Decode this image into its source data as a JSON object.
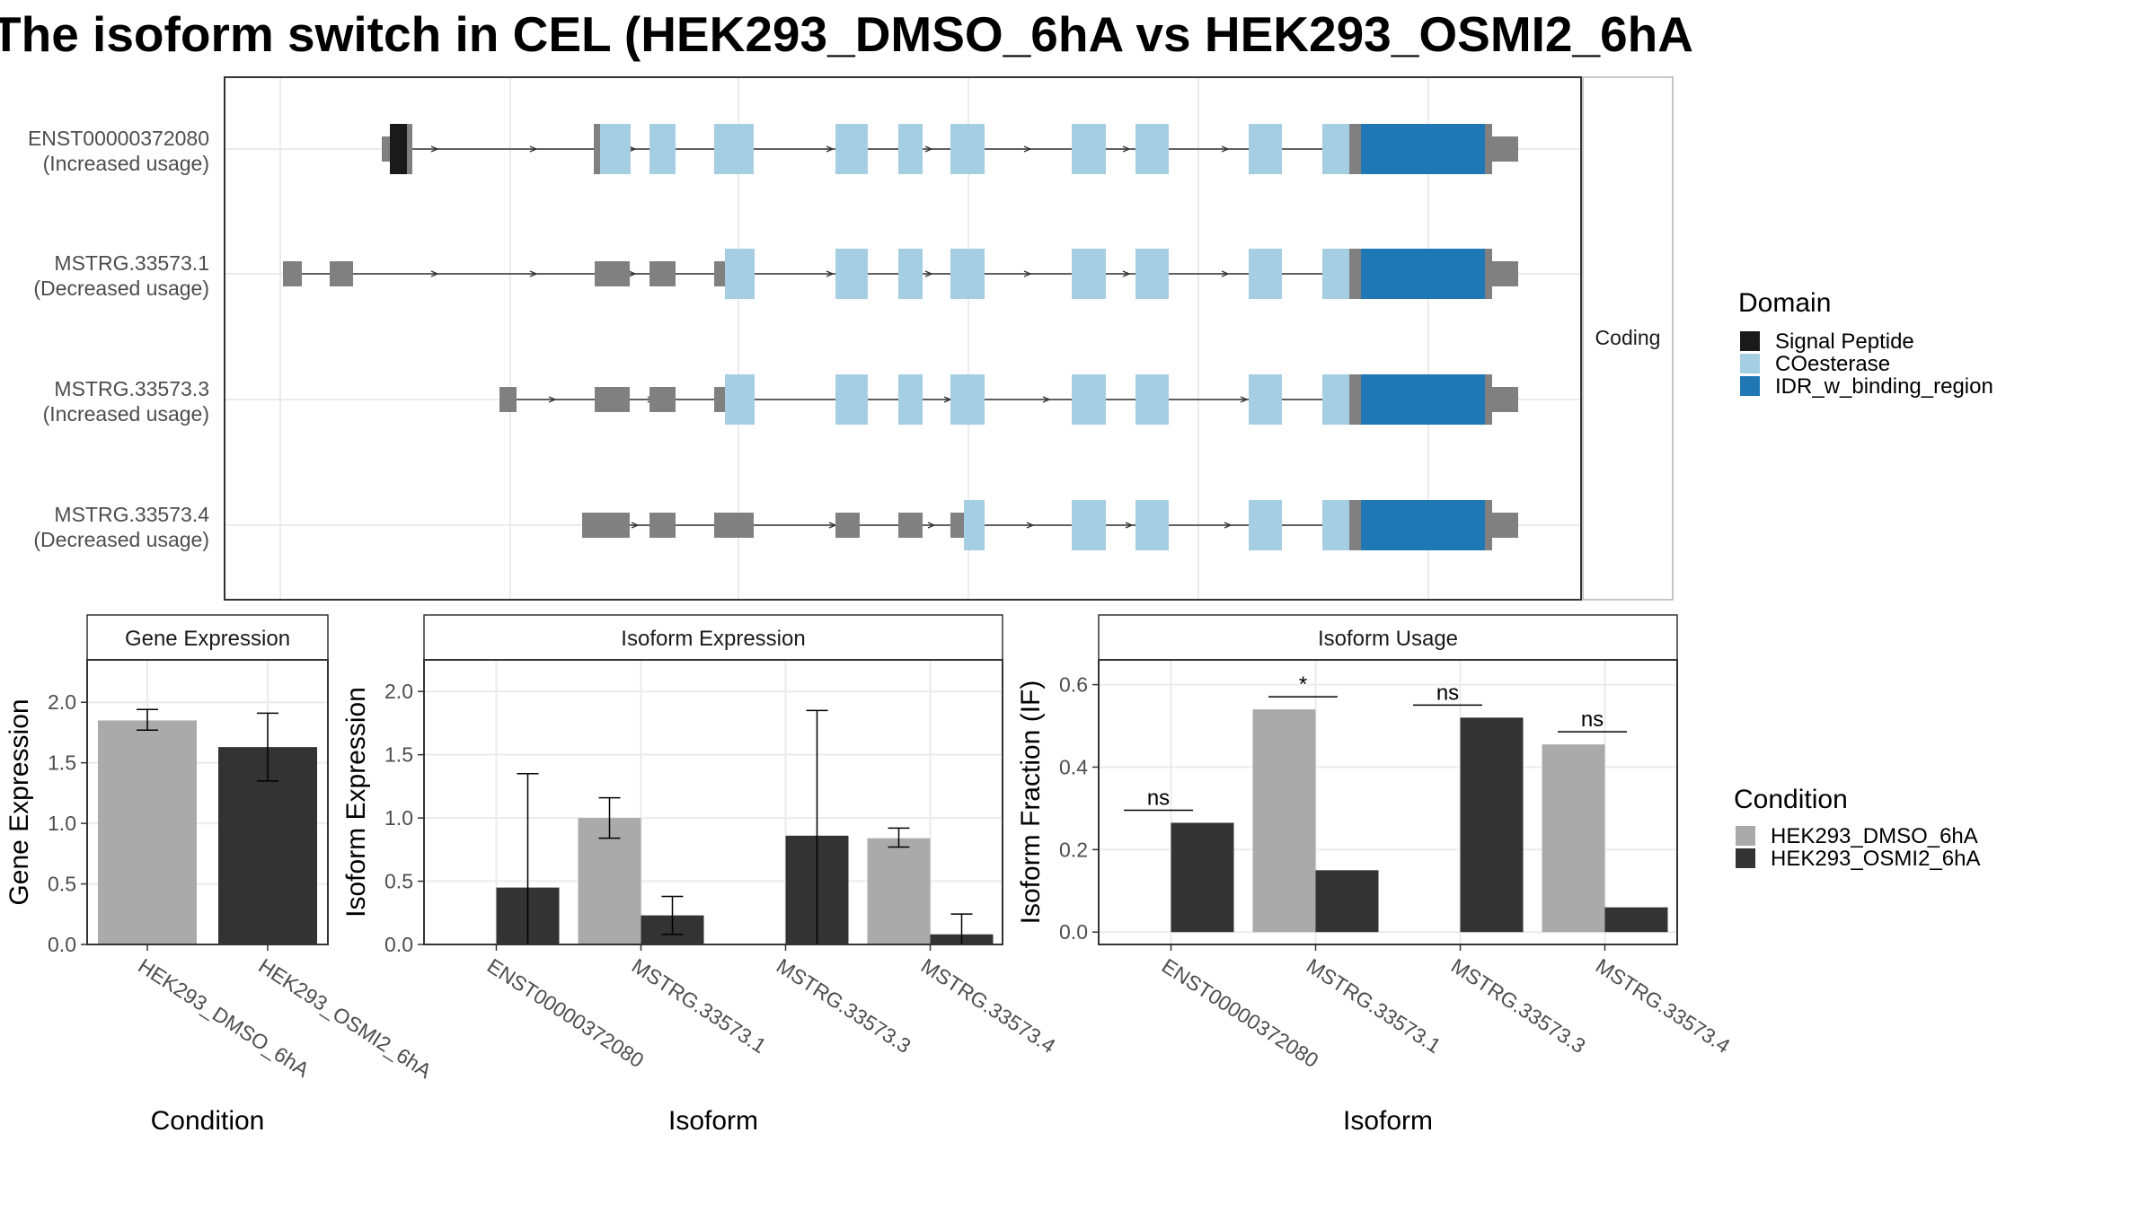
{
  "title": "The isoform switch in CEL (HEK293_DMSO_6hA vs HEK293_OSMI2_6hA",
  "chart_data": [
    {
      "type": "gene-structure",
      "facet_label": "Coding",
      "transcripts": [
        {
          "id": "ENST00000372080",
          "note": "(Increased usage)"
        },
        {
          "id": "MSTRG.33573.1",
          "note": "(Decreased usage)"
        },
        {
          "id": "MSTRG.33573.3",
          "note": "(Increased usage)"
        },
        {
          "id": "MSTRG.33573.4",
          "note": "(Decreased usage)"
        }
      ],
      "legend": {
        "title": "Domain",
        "entries": [
          {
            "label": "Signal Peptide",
            "color": "#1a1a1a"
          },
          {
            "label": "COesterase",
            "color": "#a6cee3"
          },
          {
            "label": "IDR_w_binding_region",
            "color": "#1f78b4"
          }
        ]
      },
      "colors": {
        "noncoding": "#808080"
      }
    },
    {
      "type": "bar",
      "facet_label": "Gene Expression",
      "xlabel": "Condition",
      "ylabel": "Gene Expression",
      "ylim": [
        0,
        2.35
      ],
      "yticks": [
        "0.0",
        "0.5",
        "1.0",
        "1.5",
        "2.0"
      ],
      "categories": [
        "HEK293_DMSO_6hA",
        "HEK293_OSMI2_6hA"
      ],
      "values": [
        1.85,
        1.63
      ],
      "errors": [
        [
          1.77,
          1.94
        ],
        [
          1.35,
          1.91
        ]
      ]
    },
    {
      "type": "bar",
      "facet_label": "Isoform Expression",
      "xlabel": "Isoform",
      "ylabel": "Isoform Expression",
      "ylim": [
        0,
        2.25
      ],
      "yticks": [
        "0.0",
        "0.5",
        "1.0",
        "1.5",
        "2.0"
      ],
      "categories": [
        "ENST00000372080",
        "MSTRG.33573.1",
        "MSTRG.33573.3",
        "MSTRG.33573.4"
      ],
      "series": [
        {
          "name": "HEK293_DMSO_6hA",
          "values": [
            0.0,
            1.0,
            0.0,
            0.84
          ],
          "errors": [
            [
              0.0,
              0.0
            ],
            [
              0.84,
              1.16
            ],
            [
              0.0,
              0.0
            ],
            [
              0.77,
              0.92
            ]
          ]
        },
        {
          "name": "HEK293_OSMI2_6hA",
          "values": [
            0.45,
            0.23,
            0.86,
            0.08
          ],
          "errors": [
            [
              0.0,
              1.35
            ],
            [
              0.08,
              0.38
            ],
            [
              0.0,
              1.85
            ],
            [
              0.0,
              0.24
            ]
          ]
        }
      ]
    },
    {
      "type": "bar",
      "facet_label": "Isoform Usage",
      "xlabel": "Isoform",
      "ylabel": "Isoform Fraction (IF)",
      "ylim": [
        -0.03,
        0.66
      ],
      "yticks": [
        "0.0",
        "0.2",
        "0.4",
        "0.6"
      ],
      "categories": [
        "ENST00000372080",
        "MSTRG.33573.1",
        "MSTRG.33573.3",
        "MSTRG.33573.4"
      ],
      "series": [
        {
          "name": "HEK293_DMSO_6hA",
          "values": [
            0.0,
            0.54,
            0.0,
            0.455
          ]
        },
        {
          "name": "HEK293_OSMI2_6hA",
          "values": [
            0.265,
            0.15,
            0.52,
            0.06
          ]
        }
      ],
      "significance": [
        "ns",
        "*",
        "ns",
        "ns"
      ]
    }
  ],
  "condition_legend": {
    "title": "Condition",
    "entries": [
      {
        "label": "HEK293_DMSO_6hA",
        "color": "#aaaaaa"
      },
      {
        "label": "HEK293_OSMI2_6hA",
        "color": "#333333"
      }
    ]
  }
}
